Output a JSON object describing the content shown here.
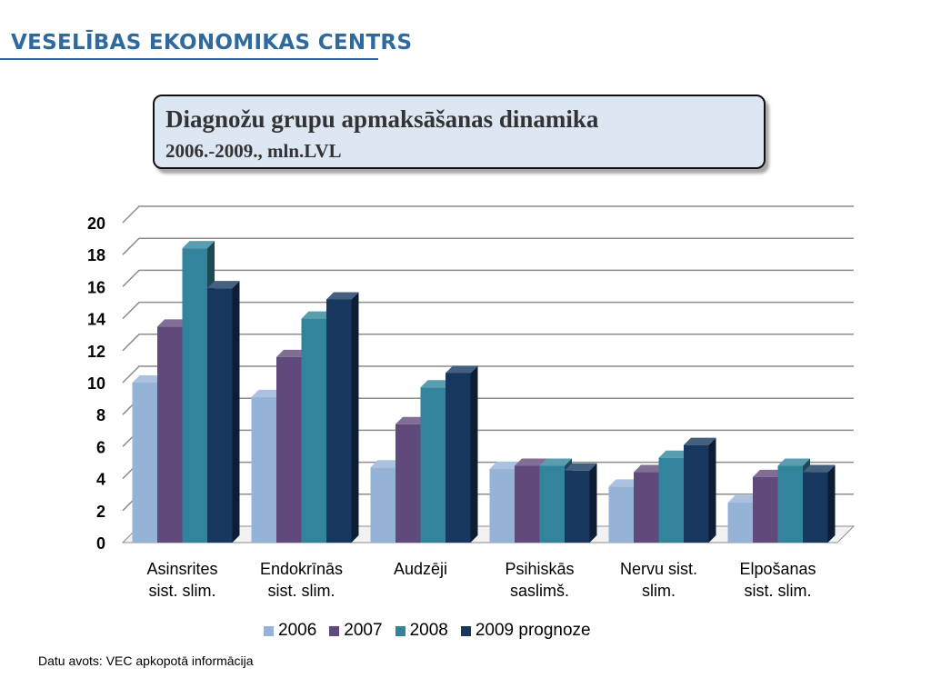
{
  "header": {
    "logo_text": "VESELĪBAS EKONOMIKAS CENTRS"
  },
  "title": {
    "main": "Diagnožu grupu apmaksāšanas dinamika",
    "sub": "2006.-2009., mln.LVL"
  },
  "chart_data": {
    "type": "bar",
    "title": "Diagnožu grupu apmaksāšanas dinamika",
    "subtitle": "2006.-2009., mln.LVL",
    "xlabel": "",
    "ylabel": "",
    "ylim": [
      0,
      20
    ],
    "yticks": [
      0,
      2,
      4,
      6,
      8,
      10,
      12,
      14,
      16,
      18,
      20
    ],
    "grid": true,
    "legend_position": "bottom",
    "categories": [
      [
        "Asinsrites",
        "sist. slim."
      ],
      [
        "Endokrīnās",
        "sist. slim."
      ],
      [
        "Audzēji"
      ],
      [
        "Psihiskās",
        "saslimš."
      ],
      [
        "Nervu sist.",
        "slim."
      ],
      [
        "Elpošanas",
        "sist. slim."
      ]
    ],
    "series": [
      {
        "name": "2006",
        "color": "#95b3d7",
        "values": [
          10.0,
          9.1,
          4.7,
          4.6,
          3.5,
          2.5
        ]
      },
      {
        "name": "2007",
        "color": "#604a7b",
        "values": [
          13.5,
          11.6,
          7.4,
          4.8,
          4.4,
          4.1
        ]
      },
      {
        "name": "2008",
        "color": "#31849b",
        "values": [
          18.4,
          14.0,
          9.7,
          4.8,
          5.3,
          4.8
        ]
      },
      {
        "name": "2009 prognoze",
        "color": "#17375e",
        "values": [
          15.9,
          15.2,
          10.6,
          4.5,
          6.1,
          4.4
        ]
      }
    ]
  },
  "source_note": "Datu avots: VEC  apkopotā informācija"
}
